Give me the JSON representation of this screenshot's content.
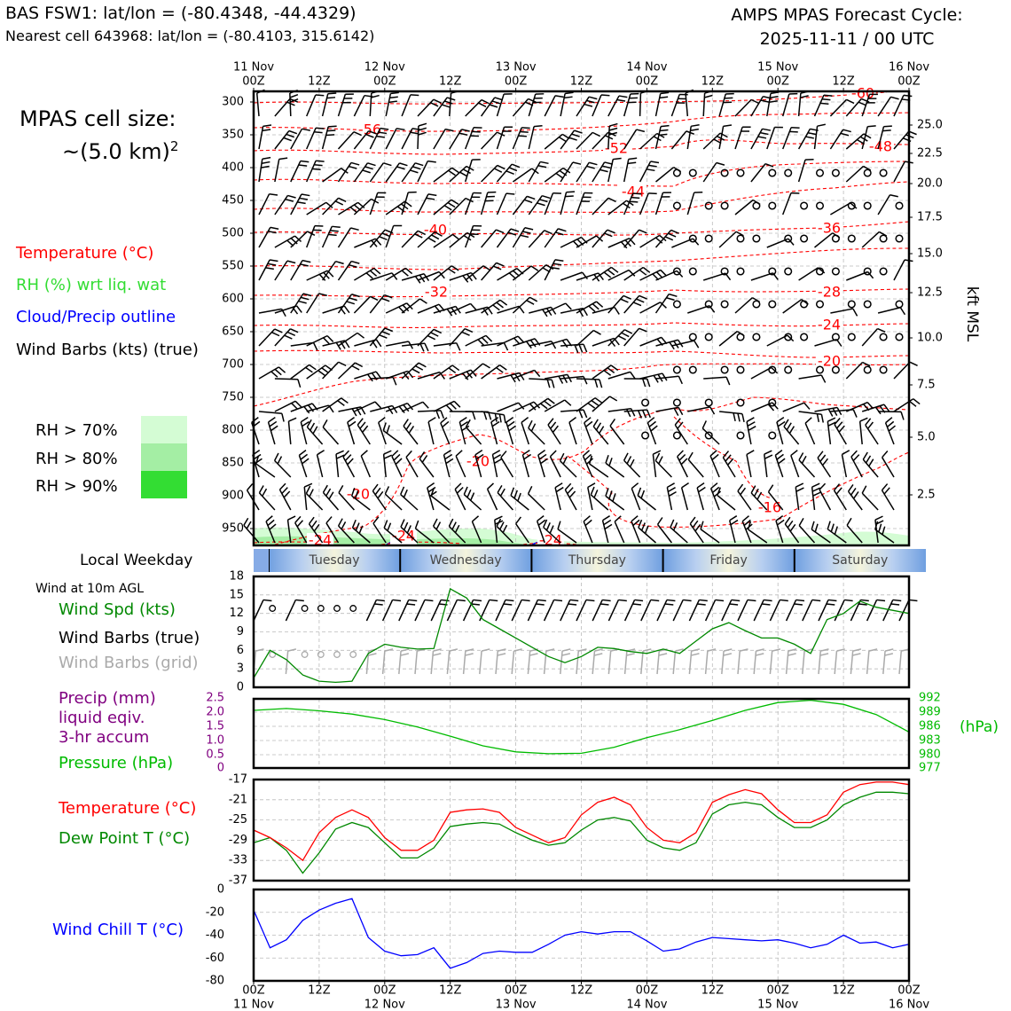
{
  "header": {
    "title_left": "BAS FSW1: lat/lon = (-80.4348, -44.4329)",
    "subtitle_left": "Nearest cell 643968: lat/lon = (-80.4103, 315.6142)",
    "title_right_line1": "AMPS MPAS Forecast Cycle:",
    "title_right_line2": "2025-11-11 / 00 UTC"
  },
  "sidebar": {
    "cell_size_label": "MPAS cell size:",
    "cell_size_value": "~(5.0 km)",
    "cell_size_exp": "2",
    "legend_temperature": "Temperature (°C)",
    "legend_rh": "RH (%) wrt liq. wat",
    "legend_cloud": "Cloud/Precip outline",
    "legend_wind": "Wind Barbs (kts) (true)",
    "rh_levels": [
      "RH > 70%",
      "RH > 80%",
      "RH > 90%"
    ],
    "weekday_label": "Local Weekday",
    "wind10m_label": "Wind at 10m AGL",
    "wind_spd_label": "Wind Spd (kts)",
    "wind_barbs_true_label": "Wind Barbs (true)",
    "wind_barbs_grid_label": "Wind Barbs (grid)",
    "precip_label_1": "Precip (mm)",
    "precip_label_2": "liquid eqiv.",
    "precip_label_3": "3-hr accum",
    "pressure_label": "Pressure (hPa)",
    "temp_label": "Temperature (°C)",
    "dew_label": "Dew Point T (°C)",
    "windchill_label": "Wind Chill T (°C)"
  },
  "colors": {
    "temperature": "#ff0000",
    "rh": "#33dd33",
    "cloud": "#0000ff",
    "wind": "#000000",
    "wind_grid": "#aaaaaa",
    "precip": "#800080",
    "pressure": "#00bb00",
    "dewpoint": "#008800",
    "windchill": "#0000ff",
    "rh70": "#d4fcd4",
    "rh80": "#a4eea4",
    "rh90": "#33dd33"
  },
  "chart_data": [
    {
      "type": "contour",
      "name": "upper-air",
      "time_ticks": [
        "00Z",
        "12Z",
        "00Z",
        "12Z",
        "00Z",
        "12Z",
        "00Z",
        "12Z",
        "00Z",
        "12Z",
        "00Z"
      ],
      "date_ticks": [
        "11 Nov",
        "12 Nov",
        "13 Nov",
        "14 Nov",
        "15 Nov",
        "16 Nov"
      ],
      "y_ticks_left_hpa": [
        300,
        350,
        400,
        450,
        500,
        550,
        600,
        650,
        700,
        750,
        800,
        850,
        900,
        950
      ],
      "y_ticks_right_kft": [
        "25.0",
        "22.5",
        "20.0",
        "17.5",
        "15.0",
        "12.5",
        "10.0",
        "7.5",
        "5.0",
        "2.5"
      ],
      "right_axis_label": "kft MSL",
      "temperature_contour_labels": [
        "-60",
        "-56",
        "-52",
        "-48",
        "-44",
        "-40",
        "-36",
        "-32",
        "-28",
        "-24",
        "-20",
        "-20",
        "-20",
        "-16",
        "-24",
        "-24",
        "-24"
      ]
    },
    {
      "type": "table",
      "name": "local-weekday",
      "days": [
        "Tuesday",
        "Wednesday",
        "Thursday",
        "Friday",
        "Saturday"
      ]
    },
    {
      "type": "line",
      "name": "wind-speed",
      "x_hours": [
        0,
        3,
        6,
        9,
        12,
        15,
        18,
        21,
        24,
        27,
        30,
        33,
        36,
        39,
        42,
        45,
        48,
        51,
        54,
        57,
        60,
        63,
        66,
        69,
        72,
        75,
        78,
        81,
        84,
        87,
        90,
        93,
        96,
        99,
        102,
        105,
        108,
        111,
        114,
        117,
        120
      ],
      "y_ticks": [
        0,
        3,
        6,
        9,
        12,
        15,
        18
      ],
      "ylim": [
        0,
        18
      ],
      "series": [
        {
          "name": "Wind Spd (kts)",
          "values": [
            1.5,
            6,
            4.5,
            2,
            1,
            0.8,
            1,
            5.5,
            7,
            6.5,
            6.2,
            6.3,
            16,
            14.5,
            11,
            9.5,
            8,
            6.5,
            5,
            4,
            5,
            6.5,
            6.3,
            5.8,
            5.5,
            6.2,
            5.5,
            7.5,
            9.5,
            10.5,
            9.2,
            8,
            8,
            7,
            5.5,
            11,
            12,
            14,
            13,
            12.5,
            12
          ]
        }
      ]
    },
    {
      "type": "line",
      "name": "precip-pressure",
      "x_hours": [
        0,
        6,
        12,
        18,
        24,
        30,
        36,
        42,
        48,
        54,
        60,
        66,
        72,
        78,
        84,
        90,
        96,
        102,
        108,
        114,
        120
      ],
      "y_ticks_left": [
        "0",
        "0.5",
        "1.0",
        "1.5",
        "2.0",
        "2.5"
      ],
      "y_ticks_right": [
        "992",
        "989",
        "986",
        "983",
        "980",
        "977"
      ],
      "right_axis_label": "(hPa)",
      "precip_ylim": [
        0,
        2.5
      ],
      "pressure_ylim": [
        977,
        992
      ],
      "series": [
        {
          "name": "Pressure (hPa)",
          "values": [
            989.5,
            989.9,
            989.4,
            988.7,
            987.5,
            985.9,
            983.9,
            981.8,
            980.5,
            980.1,
            980.2,
            981.5,
            983.6,
            985.3,
            987.3,
            989.5,
            991.2,
            991.7,
            990.8,
            988.6,
            984.8
          ]
        },
        {
          "name": "Precip (mm)",
          "values": [
            0,
            0,
            0,
            0,
            0,
            0,
            0,
            0,
            0,
            0,
            0,
            0,
            0,
            0,
            0,
            0,
            0,
            0,
            0,
            0,
            0
          ]
        }
      ]
    },
    {
      "type": "line",
      "name": "temperature-dewpoint",
      "x_hours": [
        0,
        3,
        6,
        9,
        12,
        15,
        18,
        21,
        24,
        27,
        30,
        33,
        36,
        39,
        42,
        45,
        48,
        51,
        54,
        57,
        60,
        63,
        66,
        69,
        72,
        75,
        78,
        81,
        84,
        87,
        90,
        93,
        96,
        99,
        102,
        105,
        108,
        111,
        114,
        117,
        120
      ],
      "y_ticks": [
        -17,
        -21,
        -25,
        -29,
        -33,
        -37
      ],
      "ylim": [
        -37,
        -17
      ],
      "series": [
        {
          "name": "Temperature (°C)",
          "values": [
            -27,
            -28.5,
            -30.5,
            -33,
            -27.5,
            -24.5,
            -23,
            -24.5,
            -28.5,
            -31,
            -31,
            -29,
            -23.5,
            -23,
            -22.8,
            -23.5,
            -26.5,
            -28,
            -29.5,
            -28.5,
            -24,
            -21.5,
            -20.5,
            -22,
            -26.5,
            -29,
            -29.5,
            -27.5,
            -21.5,
            -20,
            -19,
            -19.8,
            -23,
            -25.5,
            -25.5,
            -24,
            -19.5,
            -18,
            -17.5,
            -17.5,
            -18
          ]
        },
        {
          "name": "Dew Point T (°C)",
          "values": [
            -29.5,
            -28.5,
            -31,
            -35.5,
            -31.5,
            -26.8,
            -25.5,
            -26.5,
            -29.5,
            -32.5,
            -32.5,
            -30.5,
            -26.3,
            -25.8,
            -25.5,
            -25.8,
            -27.5,
            -29,
            -30,
            -29.5,
            -27,
            -25,
            -24.5,
            -25.2,
            -29,
            -30.5,
            -31,
            -29.5,
            -23.8,
            -22,
            -21.5,
            -22,
            -24.5,
            -26.5,
            -26.5,
            -25,
            -22,
            -20.5,
            -19.5,
            -19.5,
            -19.8
          ]
        }
      ]
    },
    {
      "type": "line",
      "name": "wind-chill",
      "x_hours": [
        0,
        3,
        6,
        9,
        12,
        15,
        18,
        21,
        24,
        27,
        30,
        33,
        36,
        39,
        42,
        45,
        48,
        51,
        54,
        57,
        60,
        63,
        66,
        69,
        72,
        75,
        78,
        81,
        84,
        87,
        90,
        93,
        96,
        99,
        102,
        105,
        108,
        111,
        114,
        117,
        120
      ],
      "y_ticks": [
        0,
        -20,
        -40,
        -60,
        -80
      ],
      "ylim": [
        -80,
        0
      ],
      "series": [
        {
          "name": "Wind Chill T (°C)",
          "values": [
            -18,
            -51,
            -44,
            -27,
            -18,
            -12,
            -8,
            -42,
            -54,
            -58,
            -57,
            -51,
            -69,
            -64,
            -56,
            -54,
            -55,
            -55,
            -48,
            -40,
            -37,
            -39,
            -37,
            -37,
            -45,
            -54,
            -52,
            -46,
            -42,
            -43,
            -44,
            -45,
            -44,
            -47,
            -51,
            -48,
            -40,
            -47,
            -46,
            -51,
            -48
          ]
        }
      ]
    }
  ]
}
